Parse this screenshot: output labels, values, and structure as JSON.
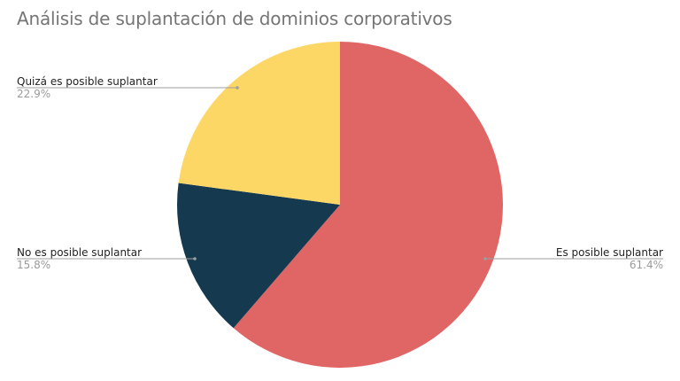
{
  "title": "Análisis de suplantación de dominios corporativos",
  "chart_data": {
    "type": "pie",
    "title": "Análisis de suplantación de dominios corporativos",
    "slices": [
      {
        "label": "Es posible suplantar",
        "value": 61.4,
        "pct_label": "61.4%",
        "color": "#E06666"
      },
      {
        "label": "No es posible suplantar",
        "value": 15.8,
        "pct_label": "15.8%",
        "color": "#153A4F"
      },
      {
        "label": "Quizá es posible suplantar",
        "value": 22.9,
        "pct_label": "22.9%",
        "color": "#FCD766"
      }
    ],
    "start_angle": "12 o'clock",
    "direction": "clockwise",
    "legend": "none",
    "label_style": "callout"
  }
}
